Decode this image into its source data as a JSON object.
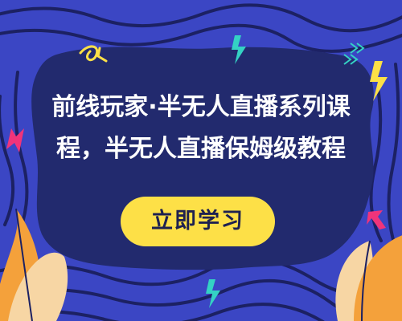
{
  "hero": {
    "title_line_1": "前线玩家·半无人直播系列课",
    "title_line_2": "程，半无人直播保姆级教程",
    "cta_label": "立即学习"
  },
  "colors": {
    "background": "#3b46c4",
    "panel": "#222a6e",
    "wave_lines": "#1c2163",
    "accent_yellow": "#fde047",
    "accent_pink": "#f0347a",
    "accent_teal": "#34d2c4",
    "leaf_orange": "#f4a13b",
    "leaf_pale": "#f7d6a4",
    "title_text": "#ffffff",
    "button_text": "#1e2150"
  },
  "icons": [
    "lightning-bolt-icon",
    "swirl-arrow-icon",
    "chevron-arrows-icon",
    "leaf-decoration"
  ]
}
